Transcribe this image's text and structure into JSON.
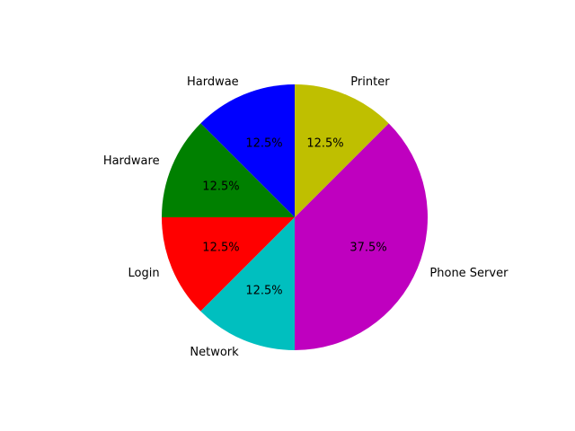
{
  "chart_data": {
    "type": "pie",
    "title": "",
    "autopct_format": "%.1f%%",
    "start_angle_deg": 90,
    "direction": "counterclockwise",
    "slices": [
      {
        "label": "Hardwae",
        "value": 1,
        "percent_label": "12.5%",
        "color": "#0000ff"
      },
      {
        "label": "Hardware",
        "value": 1,
        "percent_label": "12.5%",
        "color": "#008000"
      },
      {
        "label": "Login",
        "value": 1,
        "percent_label": "12.5%",
        "color": "#ff0000"
      },
      {
        "label": "Network",
        "value": 1,
        "percent_label": "12.5%",
        "color": "#00bfbf"
      },
      {
        "label": "Phone Server",
        "value": 3,
        "percent_label": "37.5%",
        "color": "#bf00bf"
      },
      {
        "label": "Printer",
        "value": 1,
        "percent_label": "12.5%",
        "color": "#bfbf00"
      }
    ]
  }
}
